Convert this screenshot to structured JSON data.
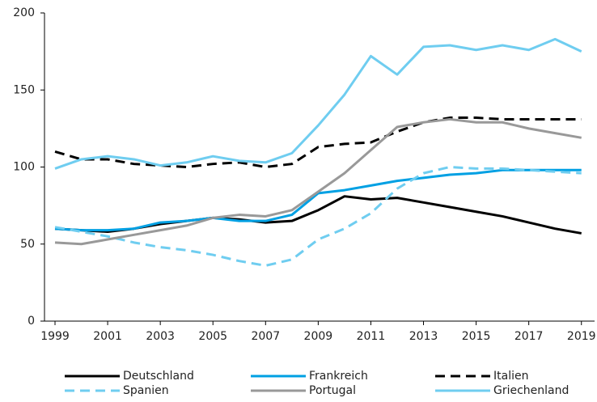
{
  "chart_data": {
    "type": "line",
    "x": [
      1999,
      2000,
      2001,
      2002,
      2003,
      2004,
      2005,
      2006,
      2007,
      2008,
      2009,
      2010,
      2011,
      2012,
      2013,
      2014,
      2015,
      2016,
      2017,
      2018,
      2019
    ],
    "series": [
      {
        "name": "Deutschland",
        "color": "#000000",
        "dashed": false,
        "values": [
          60,
          59,
          58,
          60,
          63,
          65,
          67,
          66,
          64,
          65,
          72,
          81,
          79,
          80,
          77,
          74,
          71,
          68,
          64,
          60,
          57
        ]
      },
      {
        "name": "Frankreich",
        "color": "#00a0e3",
        "dashed": false,
        "values": [
          60,
          59,
          59,
          60,
          64,
          65,
          67,
          65,
          65,
          69,
          83,
          85,
          88,
          91,
          93,
          95,
          96,
          98,
          98,
          98,
          98
        ]
      },
      {
        "name": "Italien",
        "color": "#000000",
        "dashed": true,
        "values": [
          110,
          105,
          105,
          102,
          101,
          100,
          102,
          103,
          100,
          102,
          113,
          115,
          116,
          123,
          129,
          132,
          132,
          131,
          131,
          131,
          131
        ]
      },
      {
        "name": "Spanien",
        "color": "#6fcdf0",
        "dashed": true,
        "values": [
          61,
          58,
          55,
          51,
          48,
          46,
          43,
          39,
          36,
          40,
          53,
          60,
          70,
          86,
          96,
          100,
          99,
          99,
          98,
          97,
          96
        ]
      },
      {
        "name": "Portugal",
        "color": "#999999",
        "dashed": false,
        "values": [
          51,
          50,
          53,
          56,
          59,
          62,
          67,
          69,
          68,
          72,
          84,
          96,
          111,
          126,
          129,
          131,
          129,
          129,
          125,
          122,
          119
        ]
      },
      {
        "name": "Griechenland",
        "color": "#6fcdf0",
        "dashed": false,
        "values": [
          99,
          105,
          107,
          105,
          101,
          103,
          107,
          104,
          103,
          109,
          127,
          147,
          172,
          160,
          178,
          179,
          176,
          179,
          176,
          183,
          175
        ]
      }
    ],
    "xlim": [
      1998.6,
      2019.5
    ],
    "xticks": [
      1999,
      2001,
      2003,
      2005,
      2007,
      2009,
      2011,
      2013,
      2015,
      2017,
      2019
    ],
    "ylim": [
      0,
      200
    ],
    "yticks": [
      0,
      50,
      100,
      150,
      200
    ],
    "grid": false
  }
}
